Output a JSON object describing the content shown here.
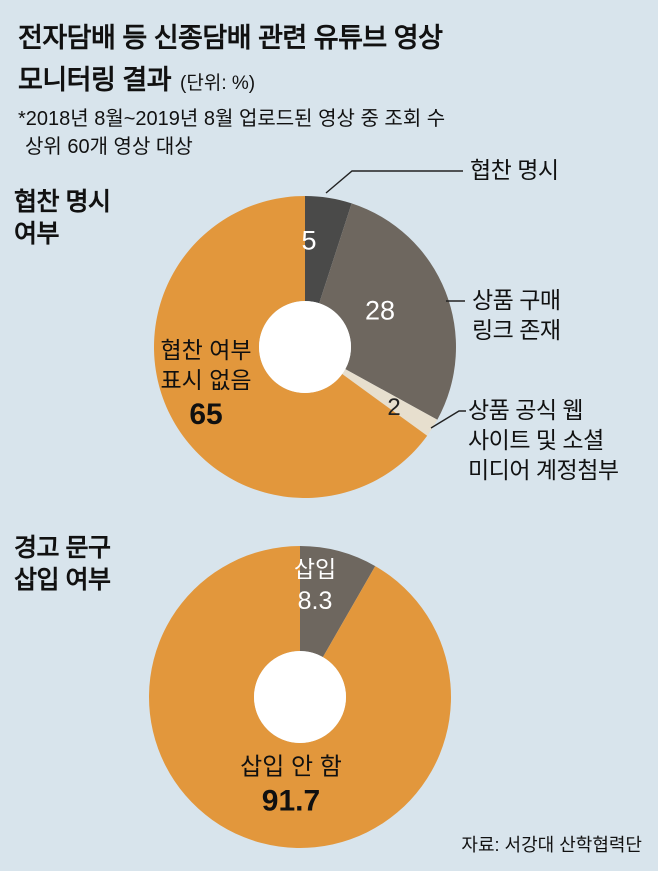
{
  "header": {
    "title_line1": "전자담배 등 신종담배 관련 유튜브 영상",
    "title_line2": "모니터링 결과",
    "unit_note": "(단위: %)",
    "subtitle_line1": "*2018년 8월~2019년 8월 업로드된 영상 중 조회 수",
    "subtitle_line2": "상위 60개 영상 대상"
  },
  "source": "자료: 서강대 산학협력단",
  "colors": {
    "background": "#d8e4ec",
    "orange": "#e2973c",
    "dark_gray": "#4a4a49",
    "warm_gray": "#6e675f",
    "beige": "#e7dfce",
    "hole": "#ffffff",
    "line": "#222222"
  },
  "chart_data": [
    {
      "type": "pie",
      "donut": true,
      "title": "협찬 명시 여부",
      "unit": "%",
      "start_angle_deg": 0,
      "direction": "clockwise",
      "segments": [
        {
          "label": "협찬 명시",
          "value": 5,
          "color_key": "dark_gray"
        },
        {
          "label": "상품 구매 링크 존재",
          "value": 28,
          "color_key": "warm_gray"
        },
        {
          "label": "상품 공식 웹 사이트 및 소셜 미디어 계정첨부",
          "value": 2,
          "color_key": "beige"
        },
        {
          "label": "협찬 여부 표시 없음",
          "value": 65,
          "color_key": "orange"
        }
      ]
    },
    {
      "type": "pie",
      "donut": true,
      "title": "경고 문구 삽입 여부",
      "unit": "%",
      "start_angle_deg": 0,
      "direction": "clockwise",
      "segments": [
        {
          "label": "삽입",
          "value": 8.3,
          "color_key": "warm_gray"
        },
        {
          "label": "삽입 안 함",
          "value": 91.7,
          "color_key": "orange"
        }
      ]
    }
  ],
  "labels": {
    "c1_section": [
      "협찬 명시",
      "여부"
    ],
    "c1_callout_top": "협찬 명시",
    "c1_value_dark": "5",
    "c1_value_gray": "28",
    "c1_value_beige": "2",
    "c1_callout_mid": [
      "상품 구매",
      "링크 존재"
    ],
    "c1_callout_bottom": [
      "상품 공식 웹",
      "사이트 및 소셜",
      "미디어 계정첨부"
    ],
    "c1_inner": [
      "협찬 여부",
      "표시 없음"
    ],
    "c1_inner_value": "65",
    "c2_section": [
      "경고 문구",
      "삽입 여부"
    ],
    "c2_gray_label": "삽입",
    "c2_gray_value": "8.3",
    "c2_orange_label": "삽입 안 함",
    "c2_orange_value": "91.7"
  }
}
